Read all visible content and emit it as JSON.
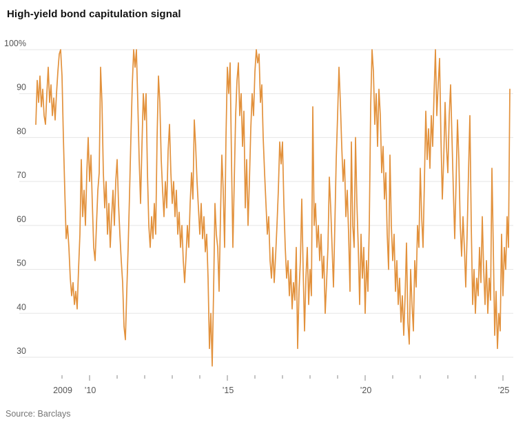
{
  "header": {
    "title": "High-yield bond capitulation signal"
  },
  "footer": {
    "source": "Source: Barclays"
  },
  "chart_data": {
    "type": "line",
    "title": "High-yield bond capitulation signal",
    "series_name": "High-yield bond capitulation signal (%)",
    "source": "Source: Barclays",
    "line_color": "#E2913C",
    "grid_color": "#E5E5E5",
    "tick_color": "#8A8A8A",
    "label_color": "#555555",
    "grid": true,
    "legend": "none",
    "ylim": [
      28,
      100
    ],
    "xlim": [
      2008.0,
      2025.5
    ],
    "y_ticks": [
      {
        "value": 100,
        "label": "100%"
      },
      {
        "value": 90,
        "label": "90"
      },
      {
        "value": 80,
        "label": "80"
      },
      {
        "value": 70,
        "label": "70"
      },
      {
        "value": 60,
        "label": "60"
      },
      {
        "value": 50,
        "label": "50"
      },
      {
        "value": 40,
        "label": "40"
      },
      {
        "value": 30,
        "label": "30"
      }
    ],
    "x_ticks": [
      {
        "year": 2009,
        "label": "2009",
        "major": false
      },
      {
        "year": 2010,
        "label": "’10",
        "major": true
      },
      {
        "year": 2011,
        "label": "",
        "major": false
      },
      {
        "year": 2012,
        "label": "",
        "major": false
      },
      {
        "year": 2013,
        "label": "",
        "major": false
      },
      {
        "year": 2014,
        "label": "",
        "major": false
      },
      {
        "year": 2015,
        "label": "’15",
        "major": true
      },
      {
        "year": 2016,
        "label": "",
        "major": false
      },
      {
        "year": 2017,
        "label": "",
        "major": false
      },
      {
        "year": 2018,
        "label": "",
        "major": false
      },
      {
        "year": 2019,
        "label": "",
        "major": false
      },
      {
        "year": 2020,
        "label": "’20",
        "major": true
      },
      {
        "year": 2021,
        "label": "",
        "major": false
      },
      {
        "year": 2022,
        "label": "",
        "major": false
      },
      {
        "year": 2023,
        "label": "",
        "major": false
      },
      {
        "year": 2024,
        "label": "",
        "major": false
      },
      {
        "year": 2025,
        "label": "’25",
        "major": true
      }
    ],
    "x_start": 2008.05,
    "x_step": 0.05,
    "values": [
      83,
      93,
      88,
      94,
      87,
      91,
      85,
      83,
      90,
      96,
      88,
      92,
      85,
      89,
      84,
      90,
      95,
      99,
      100,
      94,
      80,
      68,
      57,
      60,
      55,
      48,
      44,
      47,
      42,
      45,
      41,
      50,
      58,
      75,
      62,
      68,
      60,
      72,
      80,
      70,
      76,
      65,
      55,
      52,
      60,
      68,
      72,
      96,
      88,
      72,
      64,
      70,
      58,
      65,
      55,
      62,
      68,
      60,
      70,
      75,
      65,
      58,
      52,
      47,
      37,
      34,
      45,
      55,
      67,
      80,
      92,
      100,
      96,
      100,
      88,
      75,
      65,
      78,
      90,
      84,
      90,
      72,
      60,
      55,
      62,
      57,
      65,
      58,
      80,
      94,
      88,
      75,
      68,
      62,
      70,
      64,
      77,
      83,
      72,
      65,
      70,
      62,
      68,
      58,
      63,
      55,
      60,
      52,
      47,
      53,
      60,
      55,
      65,
      72,
      66,
      84,
      78,
      70,
      64,
      58,
      65,
      57,
      62,
      54,
      58,
      48,
      32,
      40,
      28,
      45,
      65,
      58,
      55,
      45,
      62,
      76,
      68,
      55,
      80,
      96,
      90,
      97,
      75,
      55,
      70,
      85,
      93,
      97,
      85,
      90,
      78,
      86,
      64,
      75,
      60,
      70,
      82,
      90,
      85,
      95,
      100,
      97,
      99,
      88,
      92,
      80,
      72,
      65,
      58,
      62,
      52,
      48,
      55,
      47,
      53,
      60,
      68,
      79,
      74,
      79,
      65,
      55,
      48,
      52,
      44,
      50,
      41,
      47,
      43,
      55,
      32,
      45,
      52,
      66,
      50,
      36,
      48,
      55,
      42,
      50,
      44,
      87,
      60,
      65,
      55,
      60,
      52,
      58,
      48,
      53,
      40,
      47,
      55,
      71,
      64,
      55,
      46,
      60,
      75,
      85,
      96,
      88,
      78,
      70,
      75,
      62,
      68,
      58,
      45,
      79,
      60,
      55,
      80,
      65,
      55,
      42,
      58,
      48,
      55,
      40,
      52,
      45,
      60,
      87,
      100,
      95,
      83,
      90,
      78,
      91,
      85,
      72,
      78,
      66,
      72,
      58,
      50,
      76,
      60,
      52,
      58,
      45,
      52,
      42,
      48,
      38,
      44,
      35,
      44,
      56,
      38,
      33,
      50,
      42,
      36,
      52,
      46,
      60,
      55,
      73,
      62,
      55,
      70,
      86,
      75,
      82,
      73,
      85,
      78,
      90,
      100,
      85,
      92,
      98,
      80,
      66,
      75,
      88,
      78,
      72,
      85,
      92,
      80,
      68,
      57,
      70,
      84,
      75,
      60,
      53,
      62,
      55,
      46,
      58,
      72,
      85,
      60,
      42,
      50,
      40,
      48,
      44,
      55,
      47,
      62,
      50,
      42,
      52,
      40,
      48,
      43,
      73,
      55,
      35,
      45,
      32,
      40,
      36,
      58,
      44,
      55,
      50,
      62,
      55,
      91
    ]
  }
}
